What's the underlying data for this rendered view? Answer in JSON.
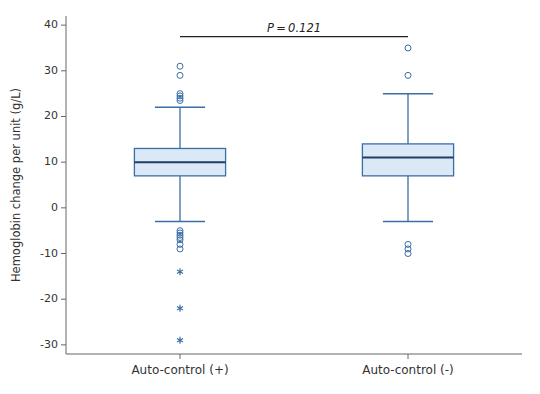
{
  "chart_data": {
    "type": "box",
    "ylabel": "Hemoglobin change per unit (g/L)",
    "categories": [
      "Auto-control (+)",
      "Auto-control (-)"
    ],
    "boxes": [
      {
        "median": 10,
        "q1": 7,
        "q3": 13,
        "whisker_low": -3,
        "whisker_high": 22,
        "outliers_circle_top": [
          31,
          29,
          25,
          24,
          24.5,
          23.5
        ],
        "outliers_circle_bottom": [
          -5,
          -5.5,
          -6,
          -6.5,
          -7,
          -8,
          -9
        ],
        "outliers_star": [
          -14,
          -22,
          -29
        ]
      },
      {
        "median": 11,
        "q1": 7,
        "q3": 14,
        "whisker_low": -3,
        "whisker_high": 25,
        "outliers_circle_top": [
          35,
          29
        ],
        "outliers_circle_bottom": [
          -8,
          -9,
          -10
        ],
        "outliers_star": []
      }
    ],
    "annotation": {
      "text": "P = 0.121",
      "bracket_y": 37.5,
      "y": 38.5
    },
    "ylim": [
      -32,
      42
    ],
    "yticks": [
      -30,
      -20,
      -10,
      0,
      10,
      20,
      30,
      40
    ],
    "grid": false
  }
}
